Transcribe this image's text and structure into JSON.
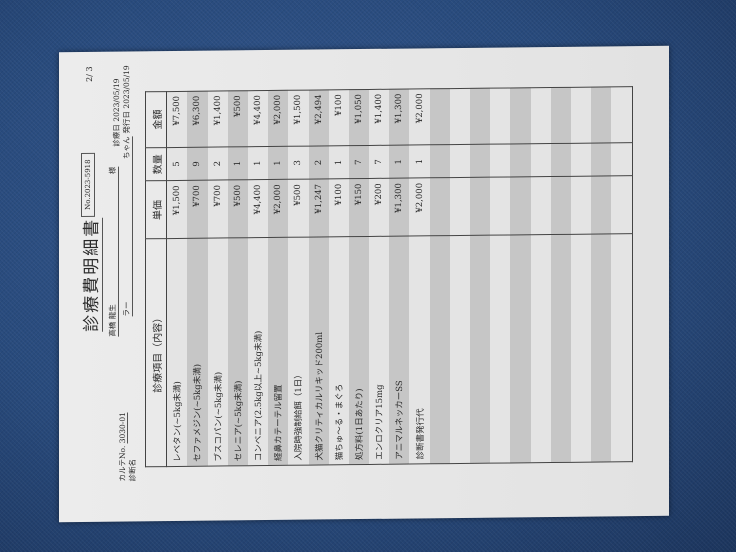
{
  "document": {
    "title": "診療費明細書",
    "page": "2/ 3",
    "number": "No.2023-5918",
    "karte_label": "カルテNo.",
    "karte_no": "3030-01",
    "diagnosis_label": "診断名",
    "owner_name": "高橋 龍生",
    "owner_suffix": "様",
    "pet_name": "ラー",
    "pet_suffix": "ちゃん",
    "visit_date_label": "診療日",
    "visit_date": "2023/05/19",
    "issue_date_label": "発行日",
    "issue_date": "2023/05/19"
  },
  "table": {
    "headers": [
      "診療項目（内容）",
      "単価",
      "数量",
      "金額"
    ],
    "rows": [
      [
        "レベタン(~5kg未満)",
        "¥1,500",
        "5",
        "¥7,500"
      ],
      [
        "セファメジン(~5kg未満)",
        "¥700",
        "9",
        "¥6,300"
      ],
      [
        "ブスコパン(~5kg未満)",
        "¥700",
        "2",
        "¥1,400"
      ],
      [
        "セレニア(~5kg未満)",
        "¥500",
        "1",
        "¥500"
      ],
      [
        "コンベニア(2.5kg以上~5kg未満)",
        "¥4,400",
        "1",
        "¥4,400"
      ],
      [
        "経鼻カテーテル留置",
        "¥2,000",
        "1",
        "¥2,000"
      ],
      [
        "入院時強制給餌（1日）",
        "¥500",
        "3",
        "¥1,500"
      ],
      [
        "犬猫クリティカルリキッド200ml",
        "¥1,247",
        "2",
        "¥2,494"
      ],
      [
        "猫ちゅ～る・まぐろ",
        "¥100",
        "1",
        "¥100"
      ],
      [
        "処方料(1日あたり)",
        "¥150",
        "7",
        "¥1,050"
      ],
      [
        "エンロクリア15mg",
        "¥200",
        "7",
        "¥1,400"
      ],
      [
        "アニマルネッカーSS",
        "¥1,300",
        "1",
        "¥1,300"
      ],
      [
        "診断書発行代",
        "¥2,000",
        "1",
        "¥2,000"
      ]
    ]
  },
  "colors": {
    "background": "#284a7c",
    "paper": "#e8e8e8",
    "row_shade": "#c6c6c6"
  }
}
